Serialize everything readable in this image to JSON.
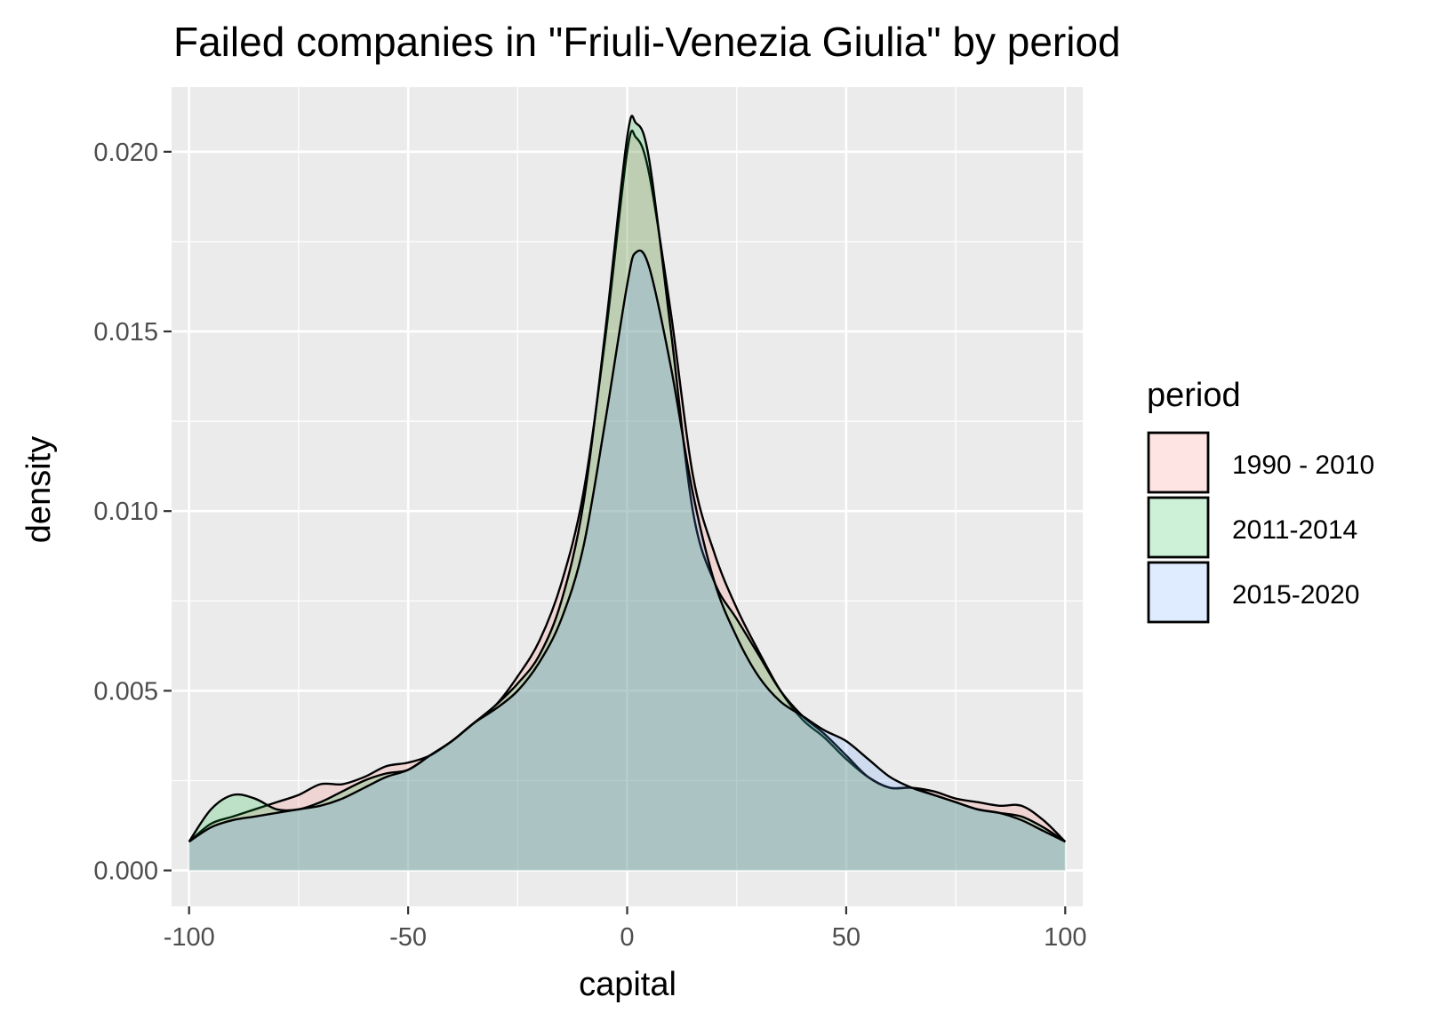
{
  "chart_data": {
    "type": "area",
    "title": "Failed companies in \"Friuli-Venezia Giulia\" by period",
    "xlabel": "capital",
    "ylabel": "density",
    "xlim": [
      -104,
      104
    ],
    "ylim": [
      -0.001,
      0.0218
    ],
    "x_ticks": [
      -100,
      -50,
      0,
      50,
      100
    ],
    "y_ticks": [
      0.0,
      0.005,
      0.01,
      0.015,
      0.02
    ],
    "x_tick_labels": [
      "-100",
      "-50",
      "0",
      "50",
      "100"
    ],
    "y_tick_labels": [
      "0.000",
      "0.005",
      "0.010",
      "0.015",
      "0.020"
    ],
    "grid": true,
    "legend": {
      "title": "period",
      "position": "right"
    },
    "x": [
      -100,
      -95,
      -90,
      -85,
      -80,
      -75,
      -70,
      -65,
      -60,
      -55,
      -50,
      -45,
      -40,
      -35,
      -30,
      -25,
      -20,
      -15,
      -10,
      -5,
      0,
      2,
      5,
      10,
      15,
      20,
      25,
      30,
      35,
      40,
      45,
      50,
      55,
      60,
      65,
      70,
      75,
      80,
      85,
      90,
      95,
      100
    ],
    "series": [
      {
        "name": "1990 - 2010",
        "color": "#F8766D",
        "values": [
          0.0008,
          0.0013,
          0.0015,
          0.0017,
          0.0019,
          0.0021,
          0.0024,
          0.0024,
          0.0026,
          0.0029,
          0.003,
          0.0032,
          0.0036,
          0.0041,
          0.0046,
          0.0054,
          0.0064,
          0.008,
          0.0105,
          0.0148,
          0.02,
          0.0204,
          0.0194,
          0.0155,
          0.011,
          0.0088,
          0.0073,
          0.0061,
          0.005,
          0.0042,
          0.0037,
          0.0031,
          0.0026,
          0.0023,
          0.0023,
          0.0022,
          0.002,
          0.0019,
          0.0018,
          0.0018,
          0.0014,
          0.0008
        ]
      },
      {
        "name": "2011-2014",
        "color": "#00BA38",
        "values": [
          0.0008,
          0.0017,
          0.0021,
          0.002,
          0.0017,
          0.0017,
          0.0019,
          0.0022,
          0.0025,
          0.0027,
          0.0028,
          0.0032,
          0.0036,
          0.0041,
          0.0046,
          0.0052,
          0.006,
          0.0075,
          0.0102,
          0.015,
          0.0204,
          0.0208,
          0.0198,
          0.015,
          0.01,
          0.008,
          0.007,
          0.006,
          0.005,
          0.0043,
          0.0038,
          0.0032,
          0.0026,
          0.0023,
          0.0023,
          0.0021,
          0.0019,
          0.0017,
          0.0016,
          0.0015,
          0.0012,
          0.0008
        ]
      },
      {
        "name": "2015-2020",
        "color": "#619CFF",
        "values": [
          0.0008,
          0.0012,
          0.0014,
          0.0015,
          0.0016,
          0.0017,
          0.0018,
          0.002,
          0.0023,
          0.0026,
          0.0028,
          0.0032,
          0.0036,
          0.0041,
          0.0045,
          0.005,
          0.0058,
          0.007,
          0.009,
          0.0125,
          0.0163,
          0.0172,
          0.0168,
          0.014,
          0.0105,
          0.008,
          0.0065,
          0.0054,
          0.0047,
          0.0043,
          0.0039,
          0.0036,
          0.0031,
          0.0026,
          0.0023,
          0.0021,
          0.0019,
          0.0017,
          0.0016,
          0.0014,
          0.0011,
          0.0008
        ]
      }
    ]
  }
}
